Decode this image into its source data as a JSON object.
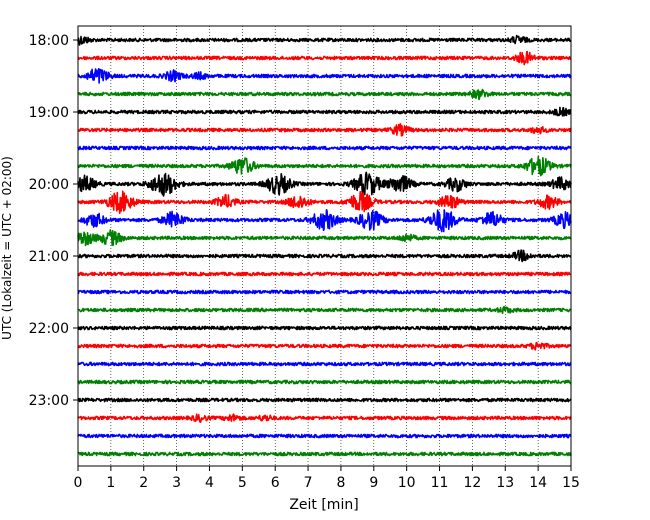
{
  "chart_data": {
    "type": "line",
    "title": "",
    "xlabel": "Zeit  [min]",
    "ylabel": "UTC (Lokalzeit = UTC + 02:00)",
    "xlim": [
      0,
      15
    ],
    "x_ticks": [
      "0",
      "1",
      "2",
      "3",
      "4",
      "5",
      "6",
      "7",
      "8",
      "9",
      "10",
      "11",
      "12",
      "13",
      "14",
      "15"
    ],
    "y_tick_labels": [
      "18:00",
      "19:00",
      "20:00",
      "21:00",
      "22:00",
      "23:00"
    ],
    "grid": "vertical dotted at each minute",
    "colors": [
      "#000000",
      "#ff0000",
      "#0000ff",
      "#008000"
    ],
    "series": [
      {
        "start": "18:00",
        "color": "#000000",
        "bursts": [
          [
            0.1,
            0.8
          ],
          [
            13.4,
            0.7
          ]
        ]
      },
      {
        "start": "18:15",
        "color": "#ff0000",
        "bursts": [
          [
            13.6,
            1.2
          ]
        ]
      },
      {
        "start": "18:30",
        "color": "#0000ff",
        "bursts": [
          [
            0.6,
            1.6
          ],
          [
            2.9,
            1.0
          ],
          [
            3.7,
            0.6
          ]
        ]
      },
      {
        "start": "18:45",
        "color": "#008000",
        "bursts": [
          [
            12.2,
            0.9
          ]
        ]
      },
      {
        "start": "19:00",
        "color": "#000000",
        "bursts": [
          [
            14.7,
            0.7
          ]
        ]
      },
      {
        "start": "19:15",
        "color": "#ff0000",
        "bursts": [
          [
            9.8,
            1.0
          ],
          [
            14.0,
            0.6
          ]
        ]
      },
      {
        "start": "19:30",
        "color": "#0000ff",
        "bursts": []
      },
      {
        "start": "19:45",
        "color": "#008000",
        "bursts": [
          [
            5.0,
            1.8
          ],
          [
            14.0,
            2.0
          ]
        ]
      },
      {
        "start": "20:00",
        "color": "#000000",
        "bursts": [
          [
            0.2,
            1.6
          ],
          [
            2.6,
            2.4
          ],
          [
            6.1,
            2.1
          ],
          [
            8.8,
            2.4
          ],
          [
            9.8,
            1.8
          ],
          [
            11.5,
            1.4
          ],
          [
            14.7,
            1.3
          ]
        ]
      },
      {
        "start": "20:15",
        "color": "#ff0000",
        "bursts": [
          [
            1.3,
            2.2
          ],
          [
            4.5,
            1.3
          ],
          [
            6.7,
            1.4
          ],
          [
            8.6,
            2.0
          ],
          [
            11.3,
            1.4
          ],
          [
            14.3,
            1.3
          ]
        ]
      },
      {
        "start": "20:30",
        "color": "#0000ff",
        "bursts": [
          [
            0.5,
            1.4
          ],
          [
            2.9,
            1.6
          ],
          [
            7.5,
            2.1
          ],
          [
            8.9,
            2.0
          ],
          [
            11.1,
            2.4
          ],
          [
            12.6,
            1.6
          ],
          [
            14.8,
            1.5
          ]
        ]
      },
      {
        "start": "20:45",
        "color": "#008000",
        "bursts": [
          [
            0.2,
            1.4
          ],
          [
            1.0,
            1.5
          ],
          [
            10.0,
            0.7
          ]
        ]
      },
      {
        "start": "21:00",
        "color": "#000000",
        "bursts": [
          [
            13.5,
            1.0
          ]
        ]
      },
      {
        "start": "21:15",
        "color": "#ff0000",
        "bursts": []
      },
      {
        "start": "21:30",
        "color": "#0000ff",
        "bursts": []
      },
      {
        "start": "21:45",
        "color": "#008000",
        "bursts": [
          [
            13.0,
            0.5
          ]
        ]
      },
      {
        "start": "22:00",
        "color": "#000000",
        "bursts": []
      },
      {
        "start": "22:15",
        "color": "#ff0000",
        "bursts": [
          [
            14.0,
            0.7
          ]
        ]
      },
      {
        "start": "22:30",
        "color": "#0000ff",
        "bursts": []
      },
      {
        "start": "22:45",
        "color": "#008000",
        "bursts": []
      },
      {
        "start": "23:00",
        "color": "#000000",
        "bursts": []
      },
      {
        "start": "23:15",
        "color": "#ff0000",
        "bursts": [
          [
            3.7,
            0.6
          ],
          [
            4.7,
            0.6
          ],
          [
            5.7,
            0.5
          ]
        ]
      },
      {
        "start": "23:30",
        "color": "#0000ff",
        "bursts": []
      },
      {
        "start": "23:45",
        "color": "#008000",
        "bursts": []
      }
    ]
  }
}
